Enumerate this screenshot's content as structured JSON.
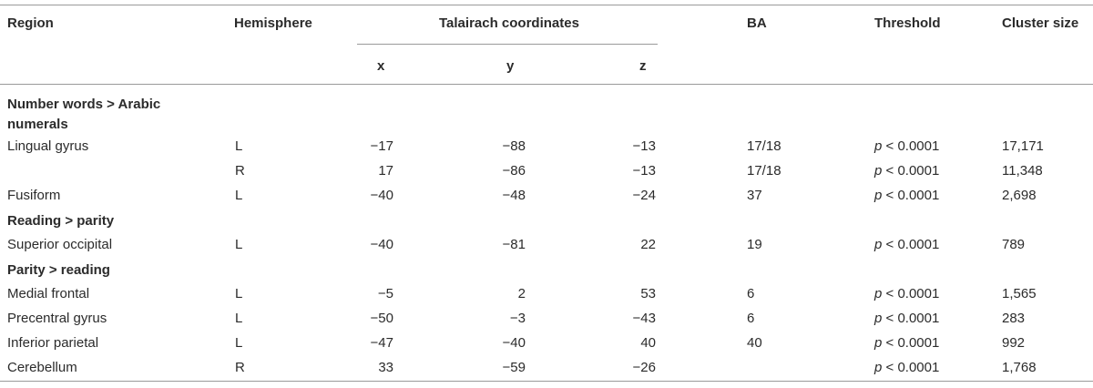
{
  "table": {
    "headers": {
      "region": "Region",
      "hemisphere": "Hemisphere",
      "coords": "Talairach coordinates",
      "x": "x",
      "y": "y",
      "z": "z",
      "ba": "BA",
      "threshold": "Threshold",
      "cluster": "Cluster size"
    },
    "groups": [
      "Number words > Arabic numerals",
      "Reading > parity",
      "Parity > reading"
    ],
    "rows": [
      {
        "region": "Lingual gyrus",
        "hemi": "L",
        "x": "−17",
        "y": "−88",
        "z": "−13",
        "ba": "17/18",
        "p": "p",
        "thr": " < 0.0001",
        "size": "17,171"
      },
      {
        "region": "",
        "hemi": "R",
        "x": "17",
        "y": "−86",
        "z": "−13",
        "ba": "17/18",
        "p": "p",
        "thr": " < 0.0001",
        "size": "11,348"
      },
      {
        "region": "Fusiform",
        "hemi": "L",
        "x": "−40",
        "y": "−48",
        "z": "−24",
        "ba": "37",
        "p": "p",
        "thr": " < 0.0001",
        "size": "2,698"
      },
      {
        "region": "Superior occipital",
        "hemi": "L",
        "x": "−40",
        "y": "−81",
        "z": "22",
        "ba": "19",
        "p": "p",
        "thr": " < 0.0001",
        "size": "789"
      },
      {
        "region": "Medial frontal",
        "hemi": "L",
        "x": "−5",
        "y": "2",
        "z": "53",
        "ba": "6",
        "p": "p",
        "thr": " < 0.0001",
        "size": "1,565"
      },
      {
        "region": "Precentral gyrus",
        "hemi": "L",
        "x": "−50",
        "y": "−3",
        "z": "−43",
        "ba": "6",
        "p": "p",
        "thr": " < 0.0001",
        "size": "283"
      },
      {
        "region": "Inferior parietal",
        "hemi": "L",
        "x": "−47",
        "y": "−40",
        "z": "40",
        "ba": "40",
        "p": "p",
        "thr": " < 0.0001",
        "size": "992"
      },
      {
        "region": "Cerebellum",
        "hemi": "R",
        "x": "33",
        "y": "−59",
        "z": "−26",
        "ba": "",
        "p": "p",
        "thr": " < 0.0001",
        "size": "1,768"
      }
    ]
  }
}
